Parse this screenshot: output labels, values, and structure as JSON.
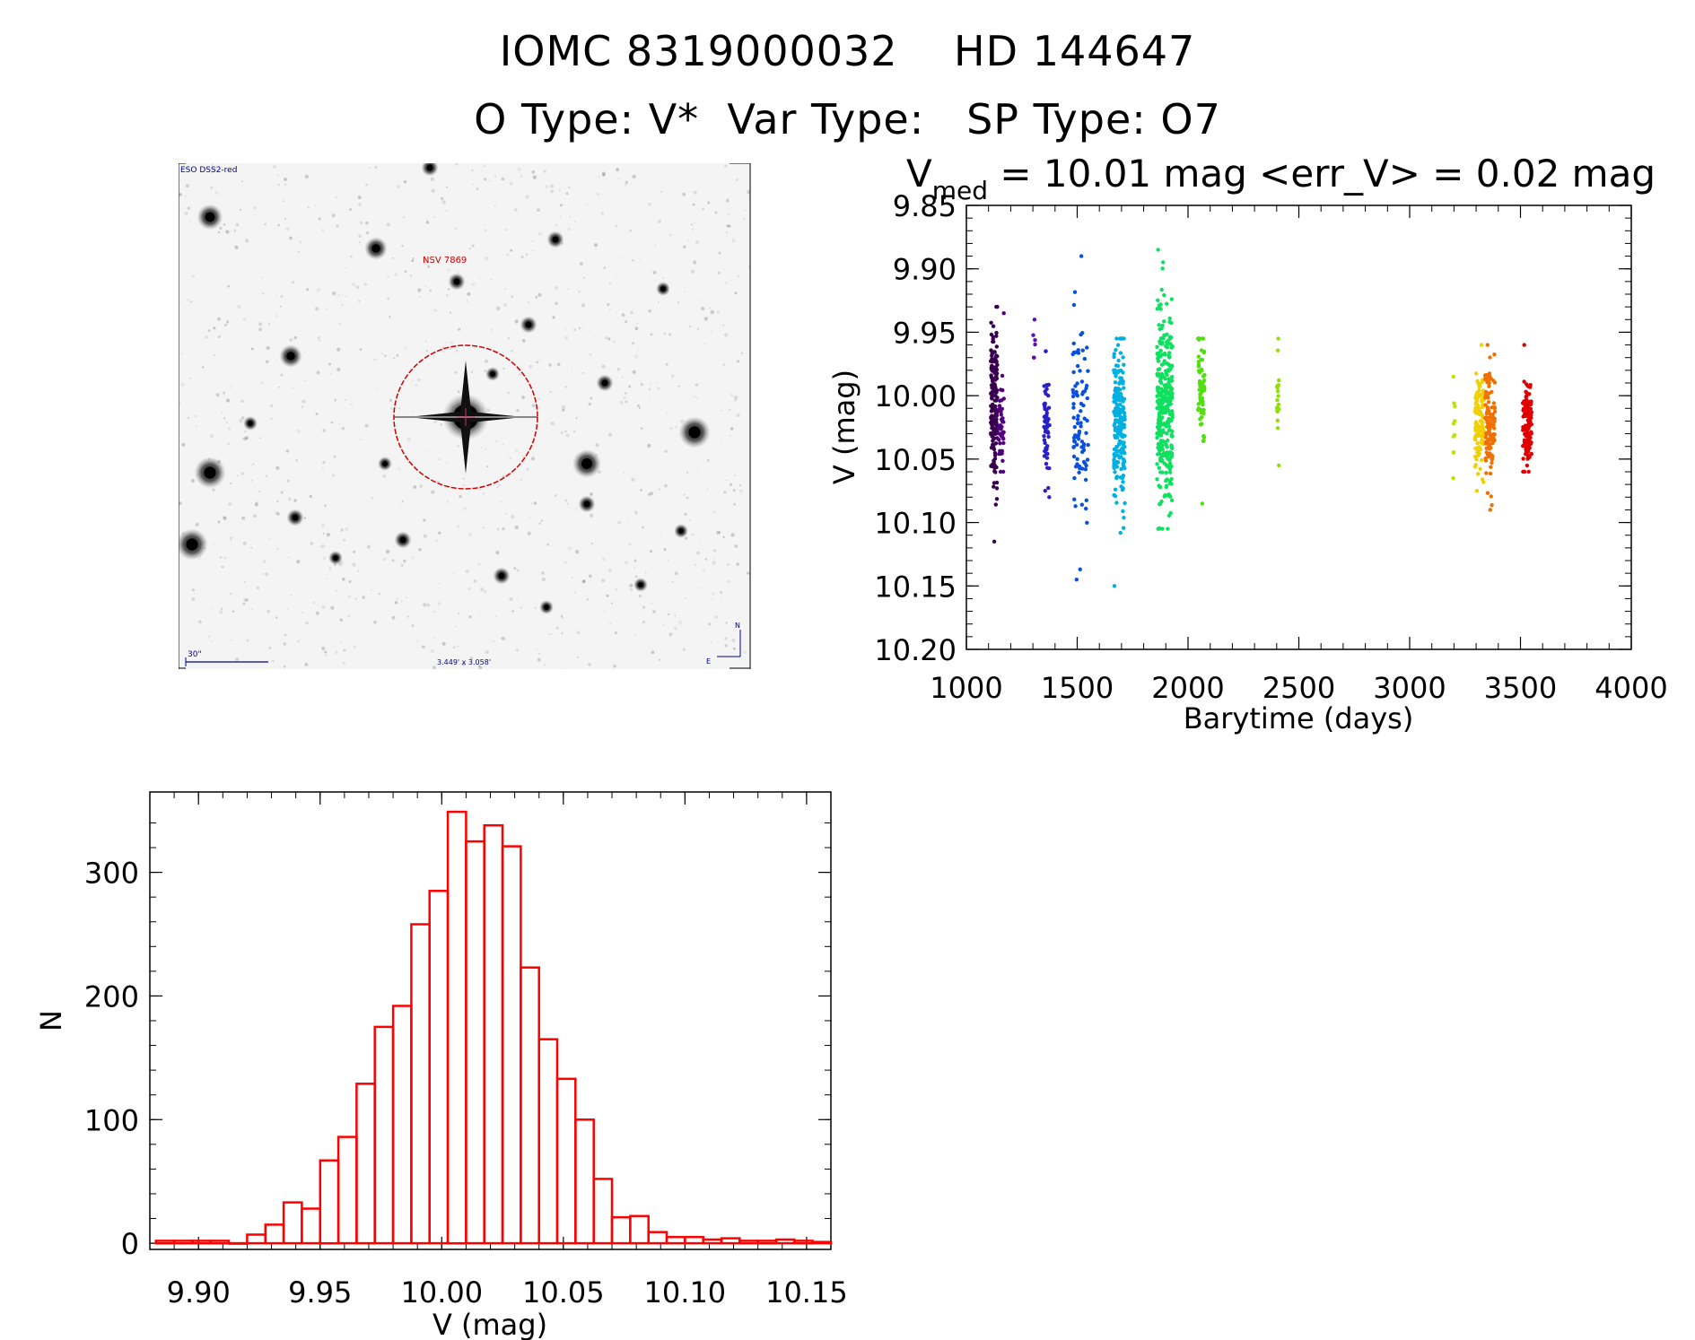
{
  "header": {
    "line1": "IOMC 8319000032    HD 144647",
    "line2": "O Type: V*  Var Type:   SP Type: O7"
  },
  "sky_image": {
    "survey_label": "ESO DSS2-red",
    "object_label": "NSV 7869",
    "scale_bar_label": "30\"",
    "fov_label": "3.449' x 3.058'",
    "north_label": "N",
    "east_label": "E",
    "colors": {
      "aperture": "#cc0000",
      "annotation": "#00008b",
      "background": "#f4f4f4"
    }
  },
  "chart_data": [
    {
      "type": "scatter",
      "title_prefix": "V",
      "title_subscript": "med",
      "title_rest": " = 10.01 mag <err_V> = 0.02 mag",
      "xlabel": "Barytime (days)",
      "ylabel": "V (mag)",
      "xlim": [
        1000,
        4000
      ],
      "ylim": [
        10.2,
        9.85
      ],
      "y_inverted": true,
      "x_ticks": [
        "1000",
        "1500",
        "2000",
        "2500",
        "3000",
        "3500",
        "4000"
      ],
      "y_ticks": [
        "9.85",
        "9.90",
        "9.95",
        "10.00",
        "10.05",
        "10.10",
        "10.15",
        "10.20"
      ],
      "clusters": [
        {
          "x": [
            1110,
            1140
          ],
          "y_center": 10.005,
          "y_min": 9.93,
          "y_max": 10.115,
          "n": 170,
          "color": "#3a0050"
        },
        {
          "x": [
            1145,
            1170
          ],
          "y_center": 10.02,
          "y_min": 9.935,
          "y_max": 10.06,
          "n": 45,
          "color": "#520080"
        },
        {
          "x": [
            1300,
            1310
          ],
          "y_center": 9.96,
          "y_min": 9.94,
          "y_max": 9.97,
          "n": 6,
          "color": "#5a10b0"
        },
        {
          "x": [
            1350,
            1375
          ],
          "y_center": 10.025,
          "y_min": 9.965,
          "y_max": 10.08,
          "n": 60,
          "color": "#2a20c8"
        },
        {
          "x": [
            1480,
            1550
          ],
          "y_center": 10.02,
          "y_min": 9.89,
          "y_max": 10.145,
          "n": 90,
          "color": "#0a50e0"
        },
        {
          "x": [
            1665,
            1715
          ],
          "y_center": 10.02,
          "y_min": 9.955,
          "y_max": 10.15,
          "n": 200,
          "color": "#00b0e0"
        },
        {
          "x": [
            1860,
            1930
          ],
          "y_center": 10.01,
          "y_min": 9.885,
          "y_max": 10.105,
          "n": 320,
          "color": "#10e060"
        },
        {
          "x": [
            2045,
            2075
          ],
          "y_center": 9.995,
          "y_min": 9.955,
          "y_max": 10.085,
          "n": 70,
          "color": "#50e010"
        },
        {
          "x": [
            2400,
            2410
          ],
          "y_center": 9.995,
          "y_min": 9.955,
          "y_max": 10.055,
          "n": 20,
          "color": "#90e000"
        },
        {
          "x": [
            3195,
            3205
          ],
          "y_center": 10.025,
          "y_min": 9.985,
          "y_max": 10.065,
          "n": 10,
          "color": "#c0e000"
        },
        {
          "x": [
            3295,
            3335
          ],
          "y_center": 10.02,
          "y_min": 9.96,
          "y_max": 10.075,
          "n": 110,
          "color": "#f0d000"
        },
        {
          "x": [
            3340,
            3385
          ],
          "y_center": 10.025,
          "y_min": 9.96,
          "y_max": 10.09,
          "n": 110,
          "color": "#f07000"
        },
        {
          "x": [
            3510,
            3550
          ],
          "y_center": 10.02,
          "y_min": 9.96,
          "y_max": 10.06,
          "n": 140,
          "color": "#e00000"
        }
      ]
    },
    {
      "type": "bar",
      "style": "histogram",
      "xlabel": "V (mag)",
      "ylabel": "N",
      "xlim": [
        9.88,
        10.16
      ],
      "ylim": [
        -5,
        365
      ],
      "x_ticks": [
        "9.90",
        "9.95",
        "10.00",
        "10.05",
        "10.10",
        "10.15"
      ],
      "y_ticks": [
        "0",
        "100",
        "200",
        "300"
      ],
      "bin_width": 0.0075,
      "bin_start": 9.8825,
      "values": [
        2,
        2,
        2,
        2,
        0,
        7,
        15,
        33,
        28,
        67,
        86,
        129,
        175,
        192,
        258,
        285,
        349,
        325,
        338,
        321,
        223,
        165,
        133,
        100,
        52,
        21,
        22,
        9,
        5,
        5,
        3,
        4,
        2,
        2,
        3,
        2,
        1
      ],
      "color": "#ff0000"
    }
  ]
}
